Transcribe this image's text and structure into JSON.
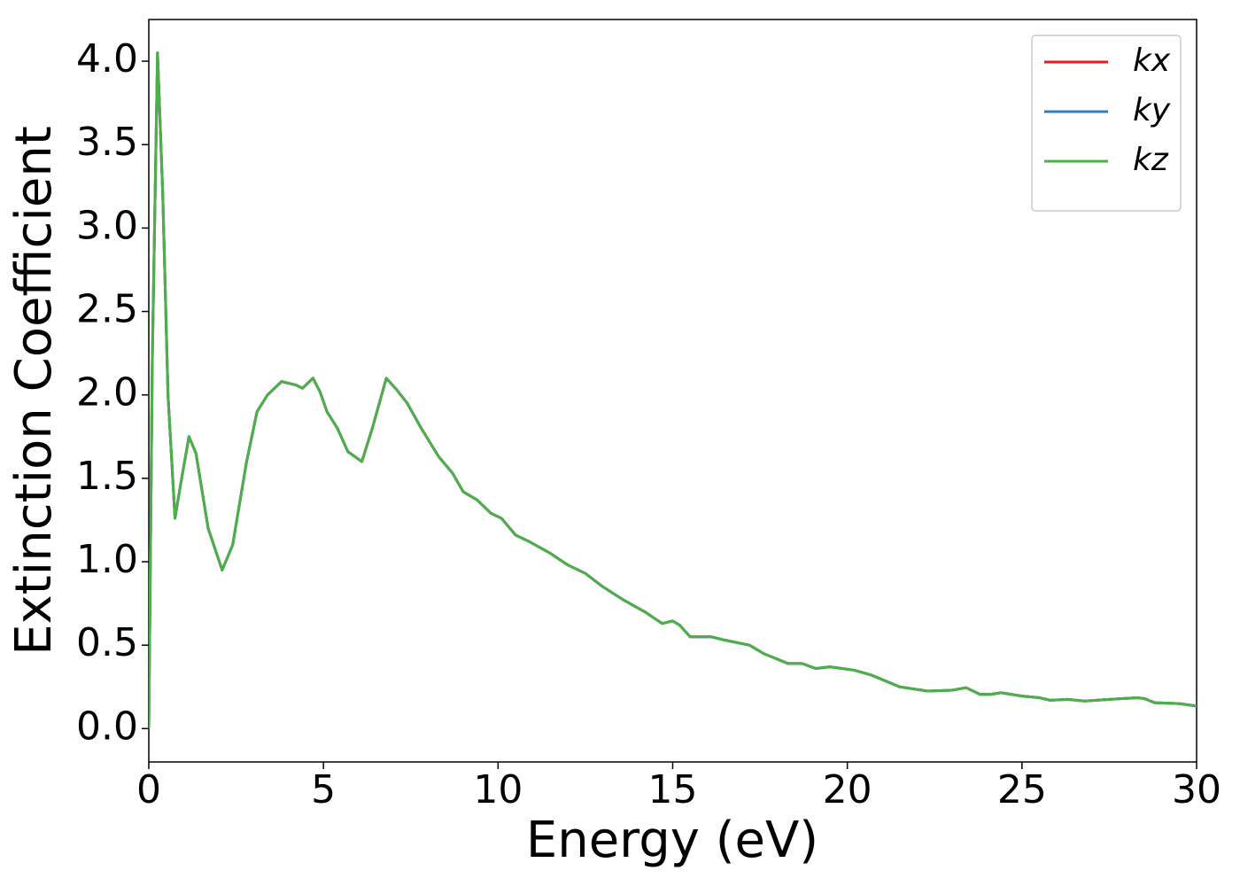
{
  "chart_data": {
    "type": "line",
    "xlabel": "Energy (eV)",
    "ylabel": "Extinction Coefficient",
    "x": [
      0,
      0.1,
      0.25,
      0.4,
      0.55,
      0.75,
      0.9,
      1.15,
      1.35,
      1.7,
      2.1,
      2.4,
      2.8,
      3.1,
      3.4,
      3.8,
      4.2,
      4.4,
      4.7,
      4.9,
      5.1,
      5.4,
      5.7,
      6.1,
      6.4,
      6.8,
      7.1,
      7.4,
      7.8,
      8.3,
      8.7,
      9.0,
      9.4,
      9.8,
      10.1,
      10.5,
      10.9,
      11.5,
      12.0,
      12.5,
      13.0,
      13.6,
      14.2,
      14.7,
      15.0,
      15.2,
      15.5,
      16.1,
      16.5,
      17.2,
      17.6,
      18.3,
      18.7,
      19.1,
      19.5,
      20.2,
      20.7,
      21.5,
      22.3,
      23.0,
      23.4,
      23.8,
      24.1,
      24.4,
      25.0,
      25.5,
      25.8,
      26.3,
      26.8,
      27.5,
      28.3,
      28.5,
      28.8,
      29.5,
      30
    ],
    "series": [
      {
        "name": "kx",
        "color": "#e41a1c",
        "values": [
          0.0,
          2.2,
          4.05,
          3.2,
          2.0,
          1.26,
          1.45,
          1.75,
          1.65,
          1.2,
          0.95,
          1.1,
          1.6,
          1.9,
          2.0,
          2.08,
          2.06,
          2.04,
          2.1,
          2.02,
          1.9,
          1.8,
          1.66,
          1.6,
          1.8,
          2.1,
          2.03,
          1.95,
          1.8,
          1.63,
          1.53,
          1.42,
          1.37,
          1.29,
          1.26,
          1.16,
          1.12,
          1.05,
          0.98,
          0.93,
          0.85,
          0.77,
          0.7,
          0.63,
          0.645,
          0.62,
          0.55,
          0.55,
          0.53,
          0.5,
          0.45,
          0.39,
          0.39,
          0.36,
          0.37,
          0.35,
          0.32,
          0.25,
          0.225,
          0.23,
          0.245,
          0.205,
          0.205,
          0.215,
          0.195,
          0.185,
          0.17,
          0.175,
          0.165,
          0.175,
          0.185,
          0.18,
          0.155,
          0.15,
          0.135
        ]
      },
      {
        "name": "ky",
        "color": "#377eb8",
        "values": [
          0.0,
          2.2,
          4.05,
          3.2,
          2.0,
          1.26,
          1.45,
          1.75,
          1.65,
          1.2,
          0.95,
          1.1,
          1.6,
          1.9,
          2.0,
          2.08,
          2.06,
          2.04,
          2.1,
          2.02,
          1.9,
          1.8,
          1.66,
          1.6,
          1.8,
          2.1,
          2.03,
          1.95,
          1.8,
          1.63,
          1.53,
          1.42,
          1.37,
          1.29,
          1.26,
          1.16,
          1.12,
          1.05,
          0.98,
          0.93,
          0.85,
          0.77,
          0.7,
          0.63,
          0.645,
          0.62,
          0.55,
          0.55,
          0.53,
          0.5,
          0.45,
          0.39,
          0.39,
          0.36,
          0.37,
          0.35,
          0.32,
          0.25,
          0.225,
          0.23,
          0.245,
          0.205,
          0.205,
          0.215,
          0.195,
          0.185,
          0.17,
          0.175,
          0.165,
          0.175,
          0.185,
          0.18,
          0.155,
          0.15,
          0.135
        ]
      },
      {
        "name": "kz",
        "color": "#4daf4a",
        "values": [
          0.0,
          2.2,
          4.05,
          3.2,
          2.0,
          1.26,
          1.45,
          1.75,
          1.65,
          1.2,
          0.95,
          1.1,
          1.6,
          1.9,
          2.0,
          2.08,
          2.06,
          2.04,
          2.1,
          2.02,
          1.9,
          1.8,
          1.66,
          1.6,
          1.8,
          2.1,
          2.03,
          1.95,
          1.8,
          1.63,
          1.53,
          1.42,
          1.37,
          1.29,
          1.26,
          1.16,
          1.12,
          1.05,
          0.98,
          0.93,
          0.85,
          0.77,
          0.7,
          0.63,
          0.645,
          0.62,
          0.55,
          0.55,
          0.53,
          0.5,
          0.45,
          0.39,
          0.39,
          0.36,
          0.37,
          0.35,
          0.32,
          0.25,
          0.225,
          0.23,
          0.245,
          0.205,
          0.205,
          0.215,
          0.195,
          0.185,
          0.17,
          0.175,
          0.165,
          0.175,
          0.185,
          0.18,
          0.155,
          0.15,
          0.135
        ]
      }
    ],
    "xlim": [
      0,
      30
    ],
    "xticks": [
      0,
      5,
      10,
      15,
      20,
      25,
      30
    ],
    "ylim": [
      -0.2,
      4.25
    ],
    "yticks": [
      {
        "value": 0,
        "label": "0.0"
      },
      0.5,
      {
        "value": 1,
        "label": "1.0"
      },
      1.5,
      {
        "value": 2,
        "label": "2.0"
      },
      2.5,
      {
        "value": 3,
        "label": "3.0"
      },
      3.5,
      {
        "value": 4,
        "label": "4.0"
      }
    ],
    "legend": "upper right",
    "grid": false
  }
}
